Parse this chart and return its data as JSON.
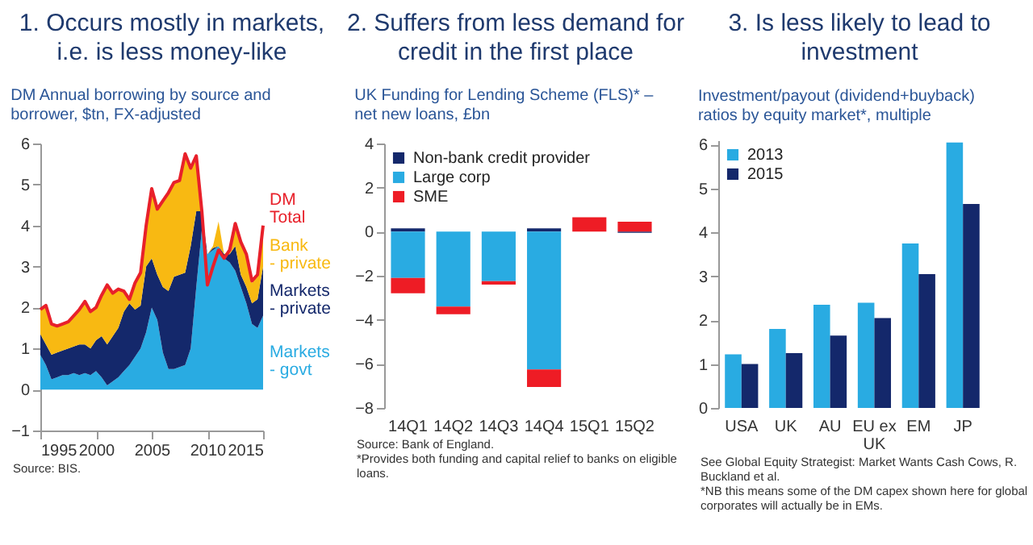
{
  "chart_data": [
    {
      "type": "area",
      "title": "1. Occurs mostly in markets, i.e. is less money-like",
      "subtitle": "DM Annual borrowing by source and borrower, $tn, FX-adjusted",
      "x": [
        1995,
        1995.5,
        1996,
        1996.5,
        1997,
        1997.5,
        1998,
        1998.5,
        1999,
        1999.5,
        2000,
        2000.5,
        2001,
        2001.5,
        2002,
        2002.5,
        2003,
        2003.5,
        2004,
        2004.5,
        2005,
        2005.5,
        2006,
        2006.5,
        2007,
        2007.5,
        2008,
        2008.5,
        2009,
        2009.5,
        2010,
        2010.5,
        2011,
        2011.5,
        2012,
        2012.5,
        2013,
        2013.5,
        2014,
        2014.5,
        2015
      ],
      "xlim": [
        1995,
        2015
      ],
      "xticks": [
        1995,
        2000,
        2005,
        2010,
        2015
      ],
      "ylim": [
        -1,
        6
      ],
      "yticks": [
        -1,
        0,
        1,
        2,
        3,
        4,
        5,
        6
      ],
      "stacked": true,
      "series": [
        {
          "name": "Markets - govt",
          "color": "#29abe2",
          "values": [
            0.85,
            0.6,
            0.25,
            0.3,
            0.35,
            0.35,
            0.4,
            0.35,
            0.4,
            0.35,
            0.45,
            0.3,
            0.1,
            0.2,
            0.3,
            0.45,
            0.6,
            0.8,
            1.0,
            1.4,
            2.0,
            1.7,
            0.9,
            0.5,
            0.5,
            0.55,
            0.6,
            1.0,
            2.5,
            3.9,
            3.3,
            3.4,
            3.5,
            3.2,
            3.1,
            2.9,
            2.5,
            2.1,
            1.6,
            1.5,
            1.8
          ]
        },
        {
          "name": "Markets - private",
          "color": "#14286b",
          "values": [
            0.5,
            0.5,
            0.6,
            0.6,
            0.6,
            0.65,
            0.65,
            0.75,
            0.7,
            0.65,
            0.75,
            1.0,
            1.0,
            1.1,
            1.2,
            1.45,
            1.5,
            1.15,
            1.05,
            1.6,
            1.2,
            1.1,
            1.6,
            1.9,
            2.25,
            2.25,
            2.25,
            2.5,
            1.85,
            0.45,
            0,
            0.05,
            0,
            0.1,
            0.2,
            0.6,
            0.3,
            0.4,
            0.5,
            0.7,
            1.2
          ]
        },
        {
          "name": "Bank - private",
          "color": "#f8b912",
          "values": [
            0.6,
            0.95,
            0.75,
            0.65,
            0.65,
            0.65,
            0.75,
            0.85,
            1.05,
            0.9,
            0.8,
            1.0,
            1.45,
            1.05,
            0.95,
            0.5,
            0.1,
            0.65,
            0.8,
            1.0,
            1.7,
            1.6,
            2.1,
            2.4,
            2.3,
            2.3,
            2.9,
            1.9,
            1.35,
            0,
            0,
            0.05,
            0.6,
            0,
            0.1,
            0.5,
            0.8,
            0.8,
            0.5,
            0.6,
            1.0
          ]
        },
        {
          "name": "DM Total",
          "type": "line",
          "color": "#e8202a",
          "values": [
            1.95,
            2.05,
            1.6,
            1.55,
            1.6,
            1.65,
            1.8,
            1.95,
            2.15,
            1.9,
            2.0,
            2.3,
            2.55,
            2.35,
            2.45,
            2.4,
            2.2,
            2.6,
            2.85,
            4.0,
            4.9,
            4.4,
            4.6,
            4.8,
            5.05,
            5.1,
            5.75,
            5.4,
            5.7,
            4.35,
            2.55,
            3.0,
            3.4,
            3.2,
            3.4,
            4.05,
            3.6,
            3.3,
            2.65,
            2.8,
            4.0
          ]
        }
      ],
      "annotations": [
        "Source: BIS."
      ]
    },
    {
      "type": "bar",
      "title": "2. Suffers from less demand for credit in the first place",
      "subtitle": "UK Funding for Lending Scheme (FLS)* – net new loans, £bn",
      "categories": [
        "14Q1",
        "14Q2",
        "14Q3",
        "14Q4",
        "15Q1",
        "15Q2"
      ],
      "stacked": true,
      "ylim": [
        -8,
        4
      ],
      "yticks": [
        -8,
        -6,
        -4,
        -2,
        0,
        2,
        4
      ],
      "legend": "top left",
      "series": [
        {
          "name": "Non-bank credit provider",
          "color": "#14286b",
          "values": [
            0.15,
            0,
            0,
            0.15,
            0,
            -0.05
          ]
        },
        {
          "name": "Large corp",
          "color": "#29abe2",
          "values": [
            -2.1,
            -3.4,
            -2.25,
            -6.25,
            0,
            0
          ]
        },
        {
          "name": "SME",
          "color": "#ee1c25",
          "values": [
            -0.7,
            -0.35,
            -0.15,
            -0.8,
            0.65,
            0.45
          ]
        }
      ],
      "annotations": [
        "Source: Bank of England.",
        "*Provides both funding and capital relief to banks on eligible loans."
      ]
    },
    {
      "type": "bar",
      "title": "3. Is less likely to lead to investment",
      "subtitle": "Investment/payout (dividend+buyback) ratios by equity market*, multiple",
      "categories": [
        "USA",
        "UK",
        "AU",
        "EU ex UK",
        "EM",
        "JP"
      ],
      "ylim": [
        0,
        6.1
      ],
      "yticks": [
        0,
        1,
        2,
        3,
        4,
        5,
        6
      ],
      "legend": "top left",
      "series": [
        {
          "name": "2013",
          "color": "#29abe2",
          "values": [
            1.22,
            1.8,
            2.35,
            2.4,
            3.75,
            6.05
          ]
        },
        {
          "name": "2015",
          "color": "#14286b",
          "values": [
            1.0,
            1.25,
            1.65,
            2.05,
            3.05,
            4.65
          ]
        }
      ],
      "annotations": [
        "See Global Equity Strategist: Market Wants Cash Cows, R. Buckland et al.",
        "*NB this means some of the DM capex shown here for global corporates will actually be in EMs."
      ]
    }
  ]
}
